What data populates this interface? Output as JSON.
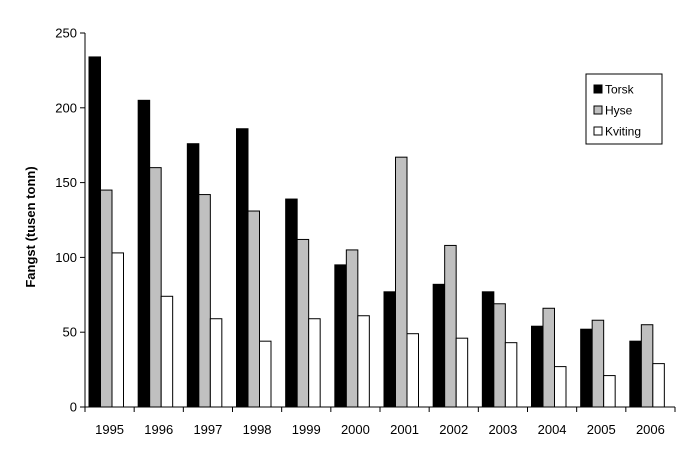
{
  "chart_data": {
    "type": "bar",
    "title": "",
    "xlabel": "",
    "ylabel": "Fangst (tusen tonn)",
    "ylim": [
      0,
      250
    ],
    "yticks": [
      0,
      50,
      100,
      150,
      200,
      250
    ],
    "grid": false,
    "legend": "right",
    "categories": [
      "1995",
      "1996",
      "1997",
      "1998",
      "1999",
      "2000",
      "2001",
      "2002",
      "2003",
      "2004",
      "2005",
      "2006"
    ],
    "series": [
      {
        "name": "Torsk",
        "color": "#000000",
        "values": [
          234,
          205,
          176,
          186,
          139,
          95,
          77,
          82,
          77,
          54,
          52,
          44
        ]
      },
      {
        "name": "Hyse",
        "color": "#c0c0c0",
        "values": [
          145,
          160,
          142,
          131,
          112,
          105,
          167,
          108,
          69,
          66,
          58,
          55
        ]
      },
      {
        "name": "Kviting",
        "color": "#ffffff",
        "values": [
          103,
          74,
          59,
          44,
          59,
          61,
          49,
          46,
          43,
          27,
          21,
          29
        ]
      }
    ]
  }
}
